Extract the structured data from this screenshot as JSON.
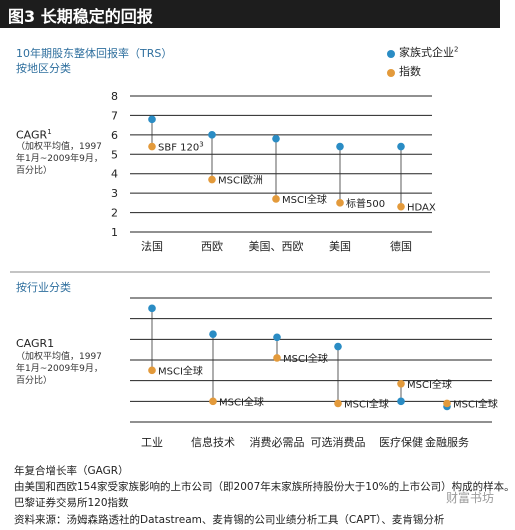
{
  "header": {
    "title": "图3 长期稳定的回报"
  },
  "chart_top": {
    "title_line1": "10年期股东整体回报率（TRS）",
    "title_line2": "按地区分类",
    "ylabel_main": "CAGR",
    "ylabel_sup": "1",
    "ylabel_sub": [
      "（加权平均值，1997",
      "年1月~2009年9月，",
      "百分比）"
    ]
  },
  "legend": {
    "family_label": "家族式企业",
    "family_sup": "2",
    "index_label": "指数",
    "family_color": "#2a8cc4",
    "index_color": "#e39a3b"
  },
  "chart_bottom": {
    "title": "按行业分类",
    "ylabel_main": "CAGR1",
    "ylabel_sub": [
      "（加权平均值，1997",
      "年1月~2009年9月，",
      "百分比）"
    ]
  },
  "chart_data": [
    {
      "type": "scatter",
      "title": "按地区分类",
      "ylabel": "CAGR",
      "ylim": [
        1,
        8
      ],
      "yticks": [
        1,
        2,
        3,
        4,
        5,
        6,
        7,
        8
      ],
      "categories": [
        "法国",
        "西欧",
        "美国、西欧",
        "美国",
        "德国"
      ],
      "series": [
        {
          "name": "家族式企业",
          "values": [
            6.8,
            6.0,
            5.8,
            5.4,
            5.4
          ]
        },
        {
          "name": "指数",
          "values": [
            5.4,
            3.7,
            2.7,
            2.5,
            2.3
          ]
        }
      ],
      "index_labels": [
        {
          "text": "SBF 120",
          "sup": "3"
        },
        {
          "text": "MSCI欧洲",
          "sup": ""
        },
        {
          "text": "MSCI全球",
          "sup": ""
        },
        {
          "text": "标普500",
          "sup": ""
        },
        {
          "text": "HDAX",
          "sup": ""
        }
      ]
    },
    {
      "type": "scatter",
      "title": "按行业分类",
      "ylabel": "CAGR1",
      "categories": [
        "工业",
        "信息技术",
        "消费必需品",
        "可选消费品",
        "医疗保健",
        "金融服务"
      ],
      "series": [
        {
          "name": "家族式企业",
          "values": [
            13.0,
            10.5,
            10.2,
            9.3,
            4.0,
            3.5
          ]
        },
        {
          "name": "指数",
          "values": [
            7.0,
            4.0,
            8.2,
            3.8,
            5.7,
            3.8
          ]
        }
      ],
      "index_labels": [
        {
          "text": "MSCI全球",
          "sup": ""
        },
        {
          "text": "MSCI全球",
          "sup": ""
        },
        {
          "text": "MSCI全球",
          "sup": ""
        },
        {
          "text": "MSCI全球",
          "sup": ""
        },
        {
          "text": "MSCI全球",
          "sup": ""
        },
        {
          "text": "MSCI全球",
          "sup": ""
        }
      ]
    }
  ],
  "footer": {
    "line1": "年复合增长率（GAGR）",
    "line2": "由美国和西欧154家受家族影响的上市公司（即2007年末家族所持股份大于10%的上市公司）构成的样本。",
    "line3": "巴黎证券交易所120指数",
    "line4": "资料来源：汤姆森路透社的Datastream、麦肯锡的公司业绩分析工具（CAPT）、麦肯锡分析"
  },
  "watermark": "财富书坊"
}
